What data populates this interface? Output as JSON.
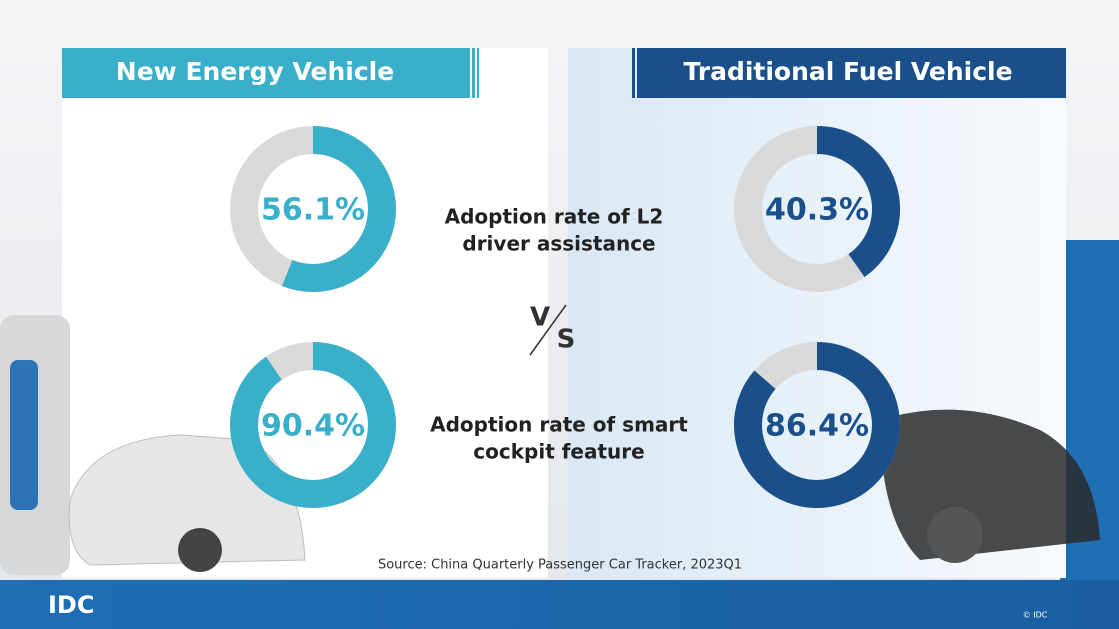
{
  "header": {
    "left": "New Energy Vehicle",
    "right": "Traditional Fuel Vehicle"
  },
  "metrics": [
    [
      "Adoption rate of L2",
      "driver assistance"
    ],
    [
      "Adoption rate of smart",
      "cockpit feature"
    ]
  ],
  "vs": [
    "V",
    "S"
  ],
  "source": "Source: China Quarterly Passenger Car Tracker, 2023Q1",
  "footer": {
    "logo": "IDC",
    "copyright": "© IDC"
  },
  "chart_data": [
    {
      "type": "donut",
      "values": [
        56.1
      ],
      "value_labels": [
        "56.1%"
      ],
      "color": "#3aafc9"
    },
    {
      "type": "donut",
      "values": [
        90.4
      ],
      "value_labels": [
        "90.4%"
      ],
      "color": "#3aafc9"
    },
    {
      "type": "donut",
      "values": [
        40.3
      ],
      "value_labels": [
        "40.3%"
      ],
      "color": "#1b4f8a"
    },
    {
      "type": "donut",
      "values": [
        86.4
      ],
      "value_labels": [
        "86.4%"
      ],
      "color": "#1b4f8a"
    }
  ]
}
